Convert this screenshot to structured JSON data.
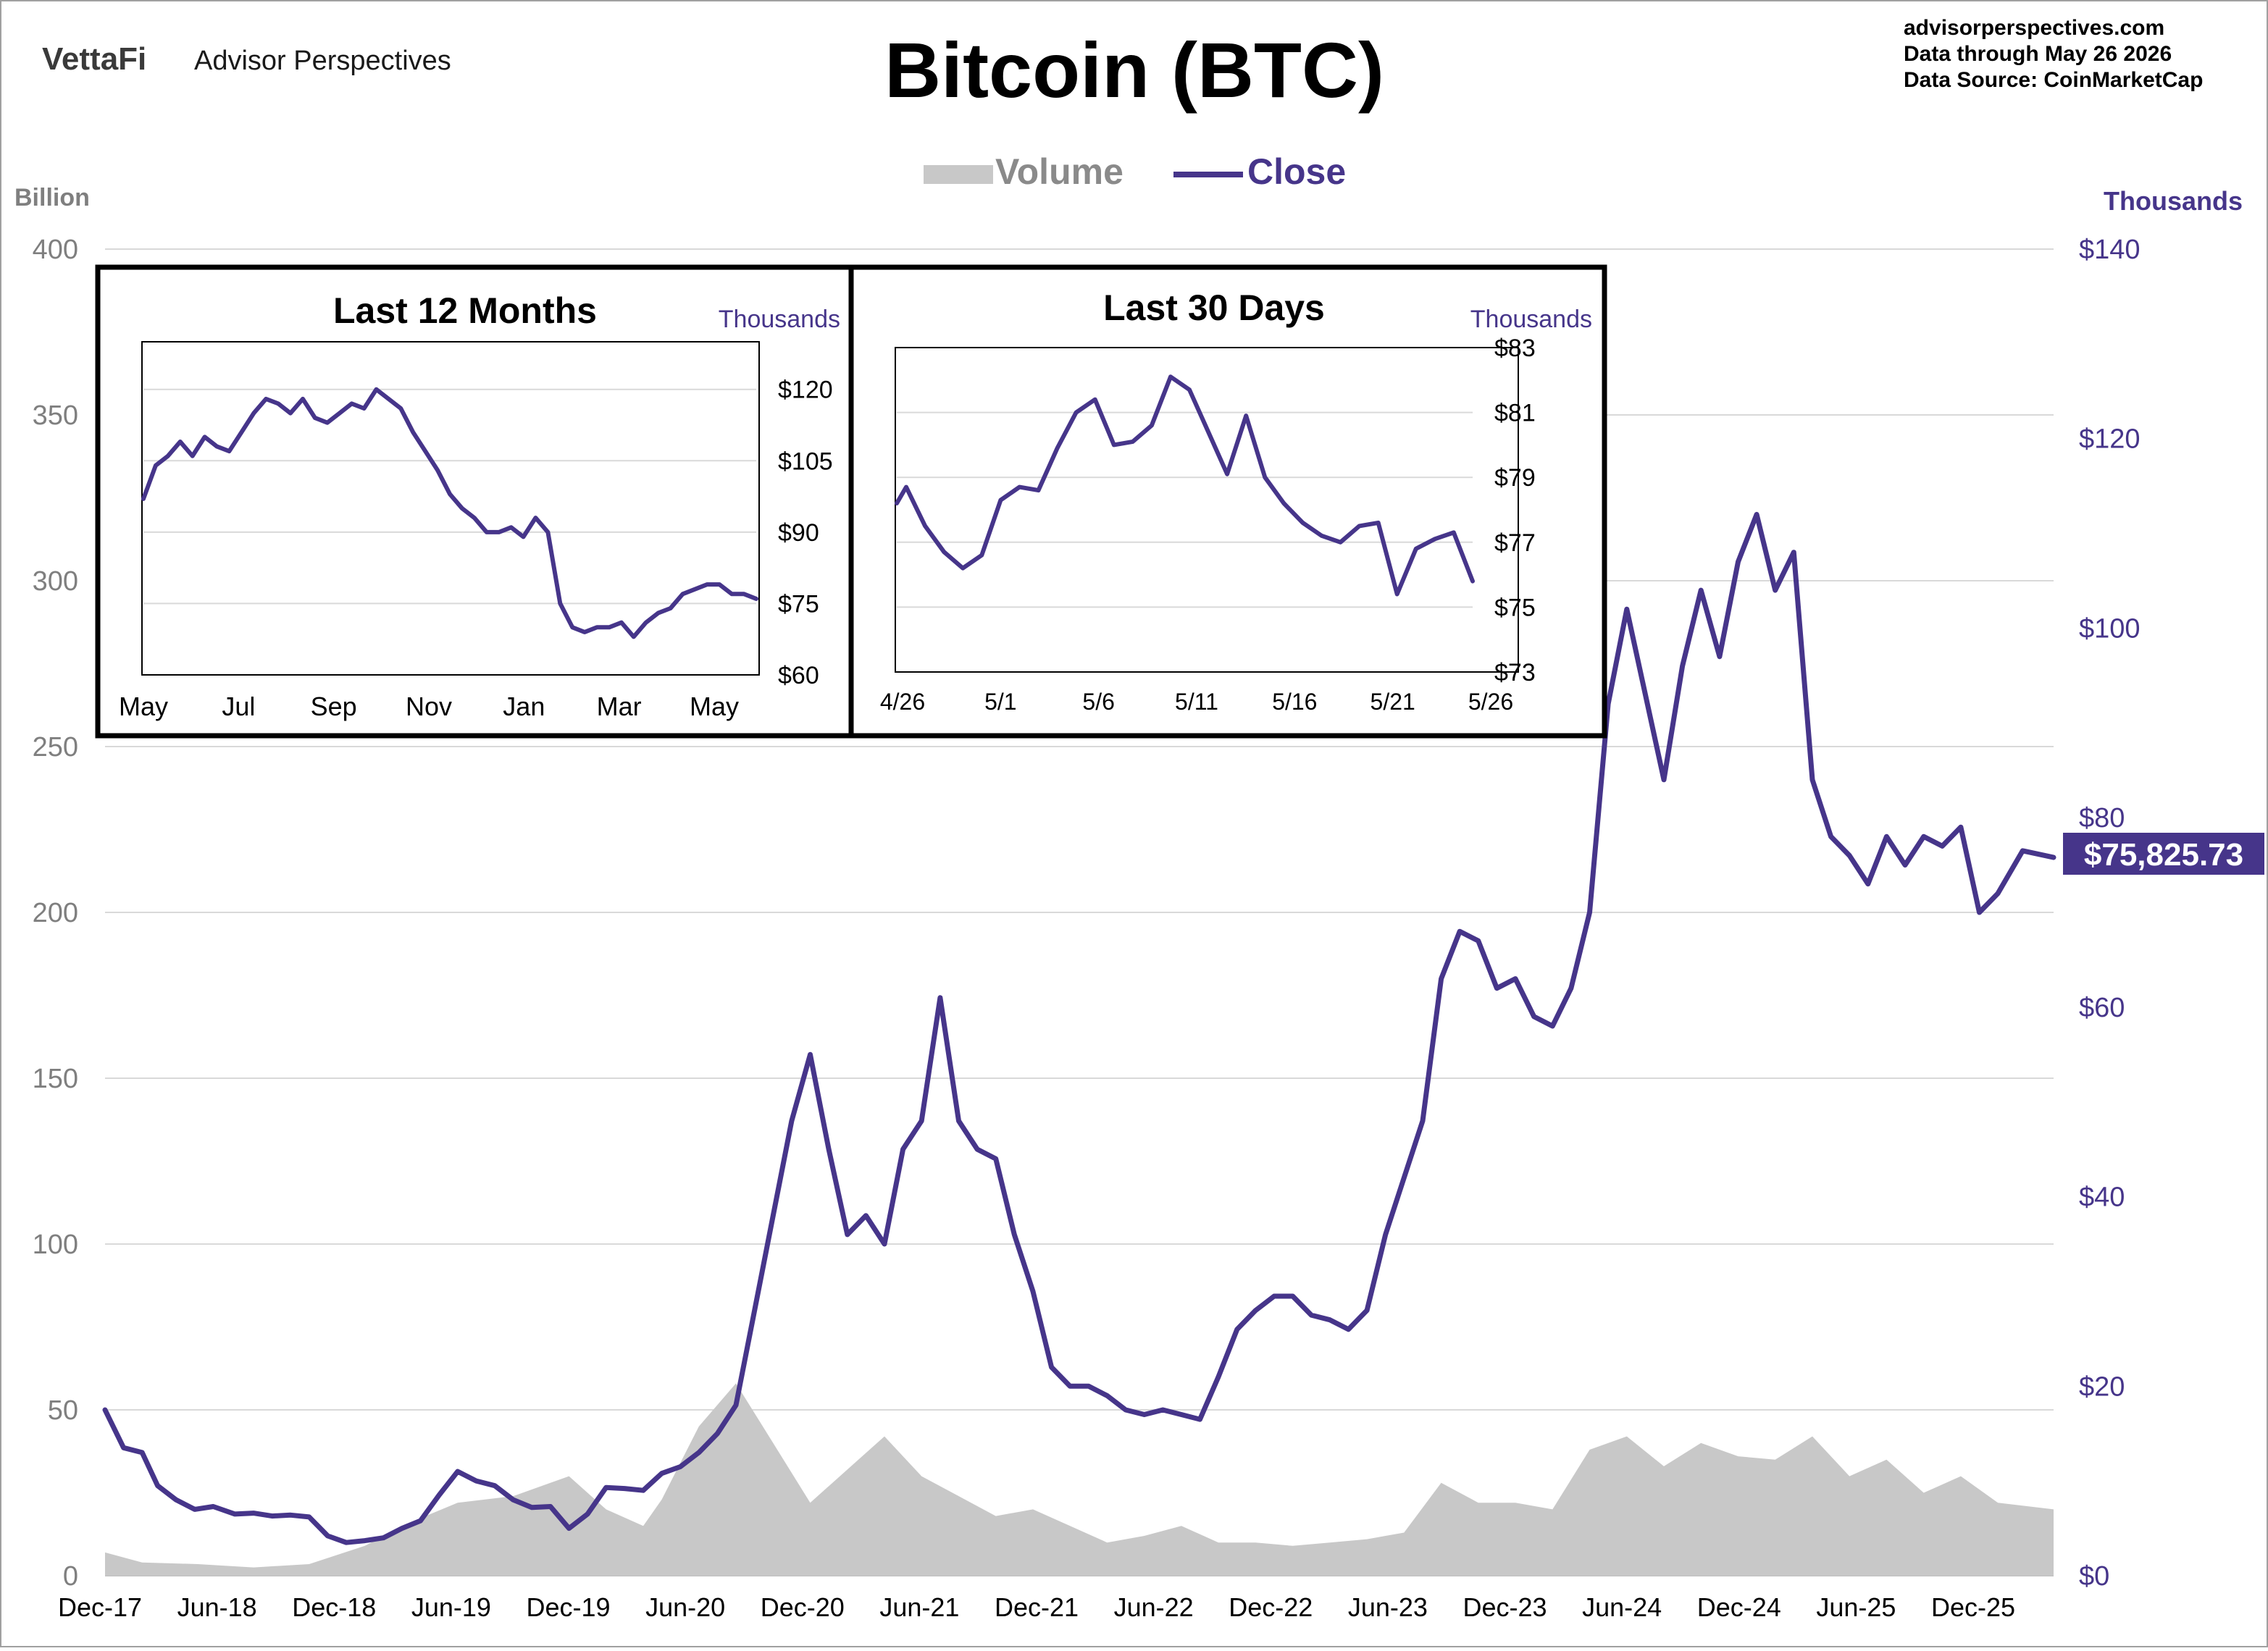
{
  "header": {
    "brand_logo": "VettaFi",
    "brand_name": "Advisor Perspectives",
    "title": "Bitcoin (BTC)",
    "source_lines": [
      "advisorperspectives.com",
      "Data through  May 26 2026",
      "Data Source:  CoinMarketCap"
    ]
  },
  "colors": {
    "close": "#46358a",
    "volume": "#c8c8c8",
    "axis_left": "#7f7f7f",
    "grid": "#d9d9d9",
    "label_bg": "#46358a"
  },
  "chart_data": [
    {
      "type": "line",
      "name": "main",
      "legend": [
        {
          "name": "Volume",
          "swatch": "area"
        },
        {
          "name": "Close",
          "swatch": "line"
        }
      ],
      "y_left_unit": "Billion",
      "y_right_unit": "Thousands",
      "y_left_ticks": [
        "0",
        "50",
        "100",
        "150",
        "200",
        "250",
        "300",
        "350",
        "400"
      ],
      "y_left_range": [
        0,
        400
      ],
      "y_right_ticks": [
        "$0",
        "$20",
        "$40",
        "$60",
        "$80",
        "$100",
        "$120",
        "$140"
      ],
      "y_right_range": [
        0,
        140
      ],
      "x_ticks": [
        "Dec-17",
        "Jun-18",
        "Dec-18",
        "Jun-19",
        "Dec-19",
        "Jun-20",
        "Dec-20",
        "Jun-21",
        "Dec-21",
        "Jun-22",
        "Dec-22",
        "Jun-23",
        "Dec-23",
        "Jun-24",
        "Dec-24",
        "Jun-25",
        "Dec-25"
      ],
      "grid": true,
      "last_value_label": "$75,825.73",
      "close_series": {
        "name": "Close",
        "unit": "thousands USD",
        "points": [
          [
            0,
            17.5
          ],
          [
            6,
            13.5
          ],
          [
            12,
            13
          ],
          [
            17,
            9.5
          ],
          [
            23,
            8
          ],
          [
            29,
            7
          ],
          [
            35,
            7.3
          ],
          [
            42,
            6.5
          ],
          [
            48,
            6.6
          ],
          [
            54,
            6.3
          ],
          [
            60,
            6.4
          ],
          [
            66,
            6.2
          ],
          [
            72,
            4.2
          ],
          [
            78,
            3.5
          ],
          [
            84,
            3.7
          ],
          [
            90,
            4
          ],
          [
            96,
            5
          ],
          [
            102,
            5.8
          ],
          [
            108,
            8.5
          ],
          [
            114,
            11
          ],
          [
            120,
            10
          ],
          [
            126,
            9.5
          ],
          [
            132,
            8
          ],
          [
            138,
            7.2
          ],
          [
            144,
            7.3
          ],
          [
            150,
            5
          ],
          [
            156,
            6.5
          ],
          [
            162,
            9.3
          ],
          [
            168,
            9.2
          ],
          [
            174,
            9
          ],
          [
            180,
            10.8
          ],
          [
            186,
            11.5
          ],
          [
            192,
            13
          ],
          [
            198,
            15
          ],
          [
            204,
            18
          ],
          [
            210,
            28
          ],
          [
            216,
            38
          ],
          [
            222,
            48
          ],
          [
            228,
            55
          ],
          [
            234,
            45
          ],
          [
            240,
            36
          ],
          [
            246,
            38
          ],
          [
            252,
            35
          ],
          [
            258,
            45
          ],
          [
            264,
            48
          ],
          [
            270,
            61
          ],
          [
            276,
            48
          ],
          [
            282,
            45
          ],
          [
            288,
            44
          ],
          [
            294,
            36
          ],
          [
            300,
            30
          ],
          [
            306,
            22
          ],
          [
            312,
            20
          ],
          [
            318,
            20
          ],
          [
            324,
            19
          ],
          [
            330,
            17.5
          ],
          [
            336,
            17
          ],
          [
            342,
            17.5
          ],
          [
            348,
            17
          ],
          [
            354,
            16.5
          ],
          [
            360,
            21
          ],
          [
            366,
            26
          ],
          [
            372,
            28
          ],
          [
            378,
            29.5
          ],
          [
            384,
            29.5
          ],
          [
            390,
            27.5
          ],
          [
            396,
            27
          ],
          [
            402,
            26
          ],
          [
            408,
            28
          ],
          [
            414,
            36
          ],
          [
            420,
            42
          ],
          [
            426,
            48
          ],
          [
            432,
            63
          ],
          [
            438,
            68
          ],
          [
            444,
            67
          ],
          [
            450,
            62
          ],
          [
            456,
            63
          ],
          [
            462,
            59
          ],
          [
            468,
            58
          ],
          [
            474,
            62
          ],
          [
            480,
            70
          ],
          [
            486,
            92
          ],
          [
            492,
            102
          ],
          [
            498,
            93
          ],
          [
            504,
            84
          ],
          [
            510,
            96
          ],
          [
            516,
            104
          ],
          [
            522,
            97
          ],
          [
            528,
            107
          ],
          [
            534,
            112
          ],
          [
            540,
            104
          ],
          [
            546,
            108
          ],
          [
            552,
            84
          ],
          [
            558,
            78
          ],
          [
            564,
            76
          ],
          [
            570,
            73
          ],
          [
            576,
            78
          ],
          [
            582,
            75
          ],
          [
            588,
            78
          ],
          [
            594,
            77
          ],
          [
            600,
            79
          ],
          [
            606,
            70
          ],
          [
            612,
            72
          ],
          [
            620,
            76.5
          ],
          [
            630,
            75.8
          ]
        ]
      },
      "volume_series": {
        "name": "Volume",
        "unit": "billions USD",
        "points": [
          [
            0,
            7
          ],
          [
            12,
            4
          ],
          [
            30,
            3.5
          ],
          [
            48,
            2.5
          ],
          [
            66,
            3.5
          ],
          [
            84,
            9
          ],
          [
            96,
            15
          ],
          [
            114,
            22
          ],
          [
            132,
            24
          ],
          [
            150,
            30
          ],
          [
            162,
            20
          ],
          [
            174,
            15
          ],
          [
            180,
            23
          ],
          [
            192,
            45
          ],
          [
            204,
            58
          ],
          [
            216,
            40
          ],
          [
            228,
            22
          ],
          [
            240,
            32
          ],
          [
            252,
            42
          ],
          [
            264,
            30
          ],
          [
            276,
            24
          ],
          [
            288,
            18
          ],
          [
            300,
            20
          ],
          [
            312,
            15
          ],
          [
            324,
            10
          ],
          [
            336,
            12
          ],
          [
            348,
            15
          ],
          [
            360,
            10
          ],
          [
            372,
            10
          ],
          [
            384,
            9
          ],
          [
            396,
            10
          ],
          [
            408,
            11
          ],
          [
            420,
            13
          ],
          [
            432,
            28
          ],
          [
            444,
            22
          ],
          [
            456,
            22
          ],
          [
            468,
            20
          ],
          [
            480,
            38
          ],
          [
            492,
            42
          ],
          [
            504,
            33
          ],
          [
            516,
            40
          ],
          [
            528,
            36
          ],
          [
            540,
            35
          ],
          [
            552,
            42
          ],
          [
            564,
            30
          ],
          [
            576,
            35
          ],
          [
            588,
            25
          ],
          [
            600,
            30
          ],
          [
            612,
            22
          ],
          [
            630,
            20
          ]
        ]
      }
    },
    {
      "type": "line",
      "name": "inset-12-months",
      "title": "Last 12 Months",
      "y_unit": "Thousands",
      "y_ticks": [
        "$60",
        "$75",
        "$90",
        "$105",
        "$120"
      ],
      "y_range": [
        60,
        130
      ],
      "x_ticks": [
        "May",
        "Jul",
        "Sep",
        "Nov",
        "Jan",
        "Mar",
        "May"
      ],
      "grid": true,
      "points": [
        [
          0,
          97
        ],
        [
          3,
          104
        ],
        [
          6,
          106
        ],
        [
          9,
          109
        ],
        [
          12,
          106
        ],
        [
          15,
          110
        ],
        [
          18,
          108
        ],
        [
          21,
          107
        ],
        [
          24,
          111
        ],
        [
          27,
          115
        ],
        [
          30,
          118
        ],
        [
          33,
          117
        ],
        [
          36,
          115
        ],
        [
          39,
          118
        ],
        [
          42,
          114
        ],
        [
          45,
          113
        ],
        [
          48,
          115
        ],
        [
          51,
          117
        ],
        [
          54,
          116
        ],
        [
          57,
          120
        ],
        [
          60,
          118
        ],
        [
          63,
          116
        ],
        [
          66,
          111
        ],
        [
          69,
          107
        ],
        [
          72,
          103
        ],
        [
          75,
          98
        ],
        [
          78,
          95
        ],
        [
          81,
          93
        ],
        [
          84,
          90
        ],
        [
          87,
          90
        ],
        [
          90,
          91
        ],
        [
          93,
          89
        ],
        [
          96,
          93
        ],
        [
          99,
          90
        ],
        [
          102,
          75
        ],
        [
          105,
          70
        ],
        [
          108,
          69
        ],
        [
          111,
          70
        ],
        [
          114,
          70
        ],
        [
          117,
          71
        ],
        [
          120,
          68
        ],
        [
          123,
          71
        ],
        [
          126,
          73
        ],
        [
          129,
          74
        ],
        [
          132,
          77
        ],
        [
          135,
          78
        ],
        [
          138,
          79
        ],
        [
          141,
          79
        ],
        [
          144,
          77
        ],
        [
          147,
          77
        ],
        [
          150,
          76
        ]
      ]
    },
    {
      "type": "line",
      "name": "inset-30-days",
      "title": "Last 30 Days",
      "y_unit": "Thousands",
      "y_ticks": [
        "$73",
        "$75",
        "$77",
        "$79",
        "$81",
        "$83"
      ],
      "y_range": [
        73,
        83
      ],
      "x_ticks": [
        "4/26",
        "5/1",
        "5/6",
        "5/11",
        "5/16",
        "5/21",
        "5/26"
      ],
      "grid": true,
      "points": [
        [
          0,
          78.2
        ],
        [
          0.5,
          78.7
        ],
        [
          1.5,
          77.5
        ],
        [
          2.5,
          76.7
        ],
        [
          3.5,
          76.2
        ],
        [
          4.5,
          76.6
        ],
        [
          5.5,
          78.3
        ],
        [
          6.5,
          78.7
        ],
        [
          7.5,
          78.6
        ],
        [
          8.5,
          79.9
        ],
        [
          9.5,
          81
        ],
        [
          10.5,
          81.4
        ],
        [
          11.5,
          80.0
        ],
        [
          12.5,
          80.1
        ],
        [
          13.5,
          80.6
        ],
        [
          14.5,
          82.1
        ],
        [
          15.5,
          81.7
        ],
        [
          16.5,
          80.4
        ],
        [
          17.5,
          79.1
        ],
        [
          18.5,
          80.9
        ],
        [
          19.5,
          79.0
        ],
        [
          20.5,
          78.2
        ],
        [
          21.5,
          77.6
        ],
        [
          22.5,
          77.2
        ],
        [
          23.5,
          77.0
        ],
        [
          24.5,
          77.5
        ],
        [
          25.5,
          77.6
        ],
        [
          26.5,
          75.4
        ],
        [
          27.5,
          76.8
        ],
        [
          28.5,
          77.1
        ],
        [
          29.5,
          77.3
        ],
        [
          30.5,
          75.8
        ]
      ]
    }
  ]
}
